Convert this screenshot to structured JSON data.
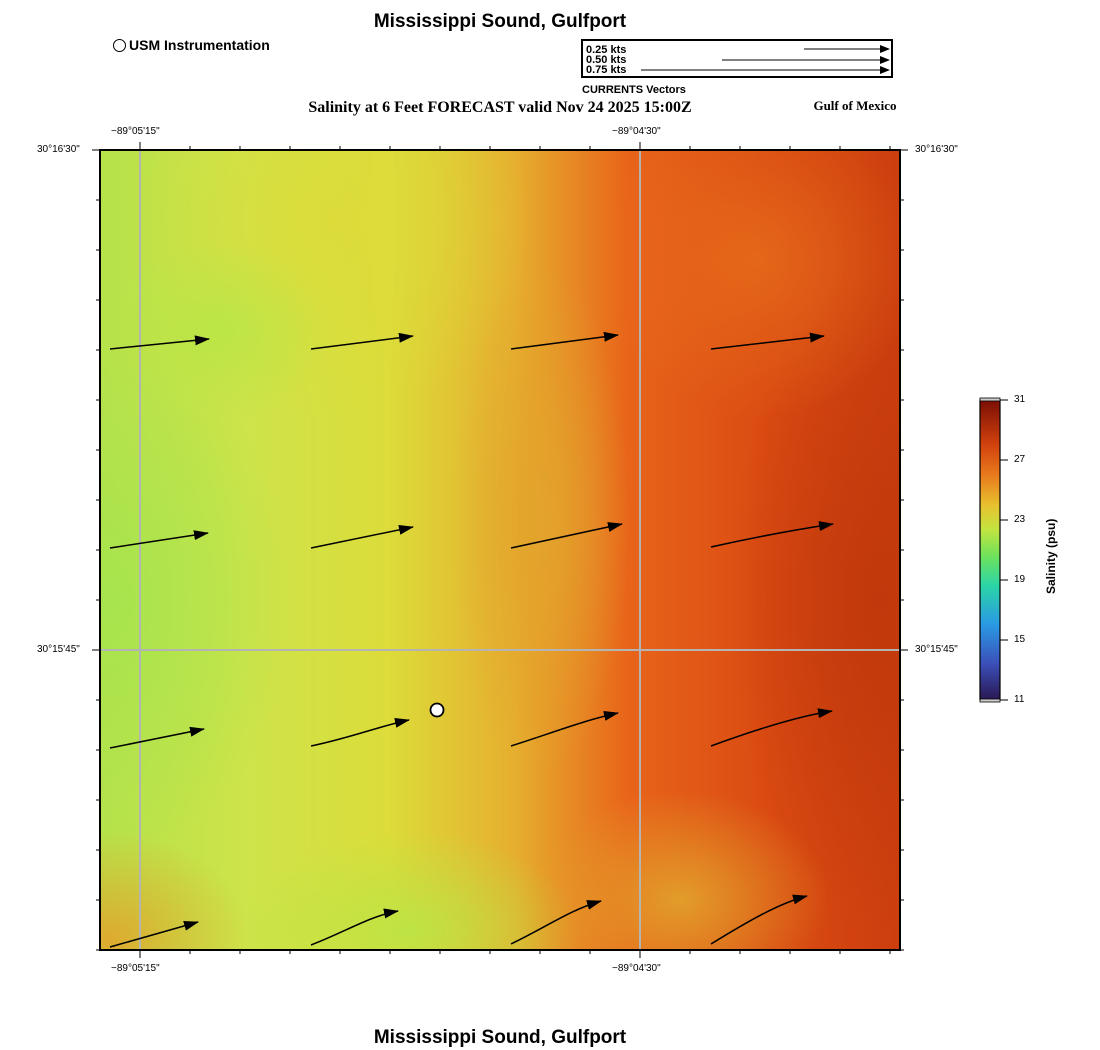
{
  "header": {
    "title": "Mississippi Sound, Gulfport",
    "subtitle": "Salinity at 6 Feet FORECAST valid Nov 24 2025 15:00Z",
    "region_label": "Gulf of Mexico",
    "footer_title": "Mississippi Sound, Gulfport"
  },
  "station_legend": {
    "label": "USM Instrumentation",
    "marker_icon": "circle-marker-icon"
  },
  "vector_legend": {
    "caption": "CURRENTS Vectors",
    "entries": [
      {
        "label": "0.25 kts",
        "speed_kts": 0.25
      },
      {
        "label": "0.50 kts",
        "speed_kts": 0.5
      },
      {
        "label": "0.75 kts",
        "speed_kts": 0.75
      }
    ]
  },
  "map": {
    "longitude_ticks": [
      "−89°05'15\"",
      "−89°04'30\""
    ],
    "latitude_ticks": [
      "30°16'30\"",
      "30°15'45\""
    ],
    "station": {
      "name": "USM Instrumentation"
    }
  },
  "colorbar": {
    "title": "Salinity (psu)",
    "ticks": [
      "31",
      "27",
      "23",
      "19",
      "15",
      "11"
    ],
    "min": 11,
    "max": 31,
    "colors": [
      "#23164a",
      "#3a62c8",
      "#27a8e8",
      "#2ad67e",
      "#a8e84a",
      "#e0e03a",
      "#e8a02a",
      "#e85a14",
      "#c8300c",
      "#7a0c04"
    ]
  }
}
